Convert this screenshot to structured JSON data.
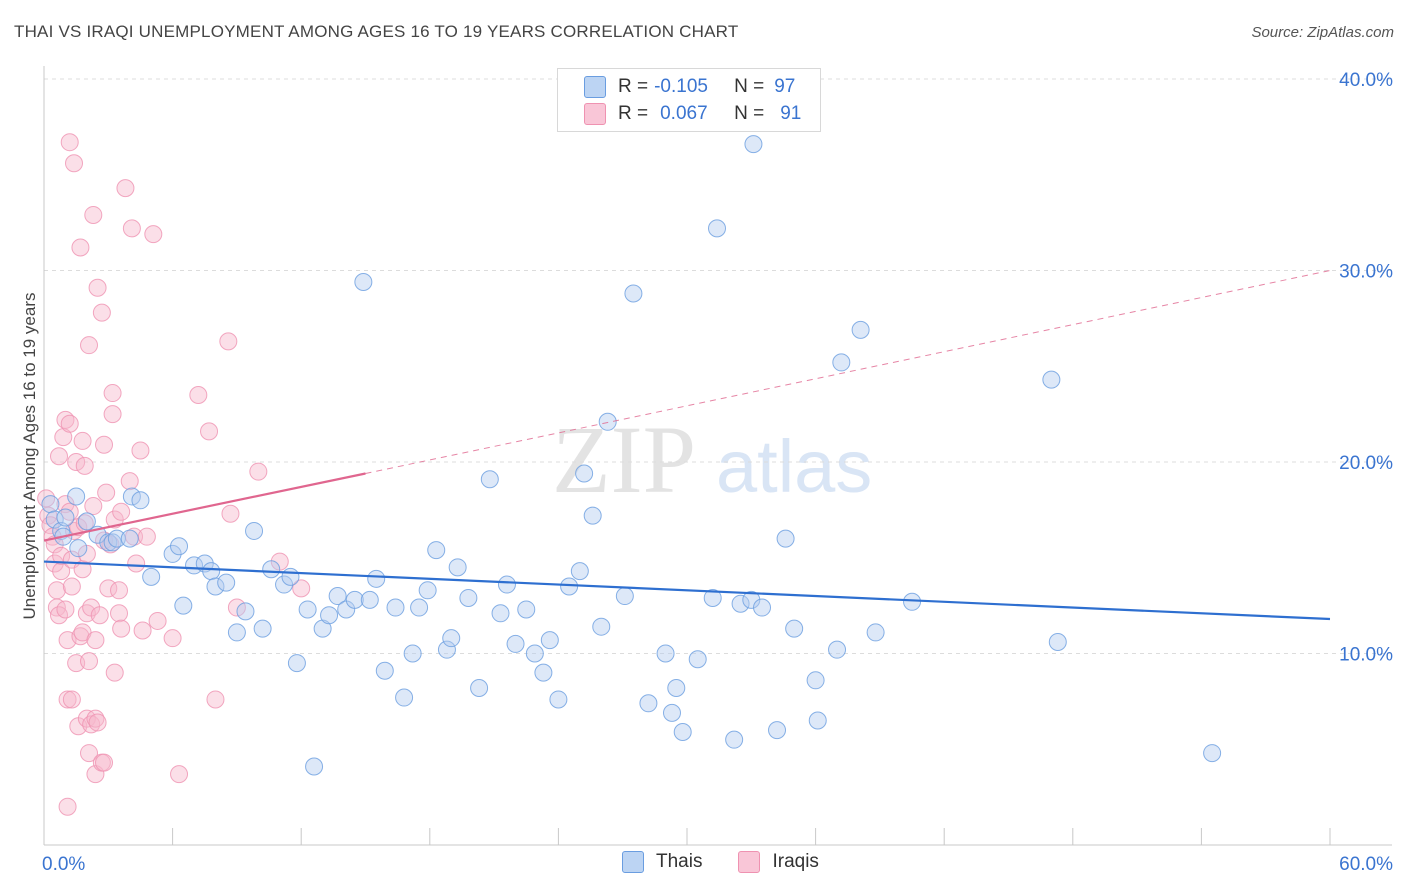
{
  "header": {
    "title": "THAI VS IRAQI UNEMPLOYMENT AMONG AGES 16 TO 19 YEARS CORRELATION CHART",
    "source": "Source: ZipAtlas.com"
  },
  "legend": {
    "r_label": "R =",
    "n_label": "N =",
    "thais": {
      "r": "-0.105",
      "n": "97"
    },
    "iraqis": {
      "r": "0.067",
      "n": "91"
    }
  },
  "watermark": {
    "zip": "ZIP",
    "atlas": "atlas"
  },
  "chart_data": {
    "type": "scatter",
    "title": "THAI VS IRAQI UNEMPLOYMENT AMONG AGES 16 TO 19 YEARS CORRELATION CHART",
    "xlabel": "",
    "ylabel": "Unemployment Among Ages 16 to 19 years",
    "xlim": [
      0,
      60
    ],
    "ylim": [
      0,
      40
    ],
    "x_tick_labels": [
      "0.0%",
      "60.0%"
    ],
    "y_tick_labels": [
      "10.0%",
      "20.0%",
      "30.0%",
      "40.0%"
    ],
    "y_ticks": [
      10,
      20,
      30,
      40
    ],
    "grid": "horizontal dashed",
    "legend_position": "top-center",
    "colors": {
      "thais": "#6a9de0",
      "iraqis": "#ef92b1",
      "thais_line": "#2e6fd0",
      "iraqis_line": "#e0668f",
      "tick_label": "#3a74d0"
    },
    "series": [
      {
        "name": "Thais",
        "trend": {
          "x": [
            0,
            60
          ],
          "y": [
            14.8,
            11.8
          ]
        },
        "points": [
          [
            0.3,
            17.8
          ],
          [
            0.5,
            17.0
          ],
          [
            0.8,
            16.4
          ],
          [
            0.9,
            16.1
          ],
          [
            1.0,
            17.1
          ],
          [
            1.5,
            18.2
          ],
          [
            1.6,
            15.5
          ],
          [
            2.0,
            16.9
          ],
          [
            2.5,
            16.2
          ],
          [
            3.0,
            15.8
          ],
          [
            3.2,
            15.8
          ],
          [
            3.4,
            16.0
          ],
          [
            4.0,
            16.0
          ],
          [
            4.1,
            18.2
          ],
          [
            4.5,
            18.0
          ],
          [
            5.0,
            14.0
          ],
          [
            6.0,
            15.2
          ],
          [
            6.3,
            15.6
          ],
          [
            6.5,
            12.5
          ],
          [
            7.0,
            14.6
          ],
          [
            7.5,
            14.7
          ],
          [
            7.8,
            14.3
          ],
          [
            8.0,
            13.5
          ],
          [
            8.5,
            13.7
          ],
          [
            9.0,
            11.1
          ],
          [
            9.4,
            12.2
          ],
          [
            9.8,
            16.4
          ],
          [
            10.2,
            11.3
          ],
          [
            10.6,
            14.4
          ],
          [
            11.2,
            13.6
          ],
          [
            11.5,
            14.0
          ],
          [
            11.8,
            9.5
          ],
          [
            12.3,
            12.3
          ],
          [
            12.6,
            4.1
          ],
          [
            13.0,
            11.3
          ],
          [
            13.3,
            12.0
          ],
          [
            13.7,
            13.0
          ],
          [
            14.1,
            12.3
          ],
          [
            14.5,
            12.8
          ],
          [
            14.9,
            29.4
          ],
          [
            15.2,
            12.8
          ],
          [
            15.5,
            13.9
          ],
          [
            15.9,
            9.1
          ],
          [
            16.4,
            12.4
          ],
          [
            16.8,
            7.7
          ],
          [
            17.2,
            10.0
          ],
          [
            17.5,
            12.4
          ],
          [
            17.9,
            13.3
          ],
          [
            18.3,
            15.4
          ],
          [
            18.8,
            10.2
          ],
          [
            19.0,
            10.8
          ],
          [
            19.3,
            14.5
          ],
          [
            19.8,
            12.9
          ],
          [
            20.3,
            8.2
          ],
          [
            20.8,
            19.1
          ],
          [
            21.3,
            12.1
          ],
          [
            21.6,
            13.6
          ],
          [
            22.0,
            10.5
          ],
          [
            22.5,
            12.3
          ],
          [
            22.9,
            10.0
          ],
          [
            23.3,
            9.0
          ],
          [
            23.6,
            10.7
          ],
          [
            24.0,
            7.6
          ],
          [
            24.5,
            13.5
          ],
          [
            25.0,
            14.3
          ],
          [
            25.2,
            19.4
          ],
          [
            25.6,
            17.2
          ],
          [
            26.0,
            11.4
          ],
          [
            26.3,
            22.1
          ],
          [
            27.1,
            13.0
          ],
          [
            27.5,
            28.8
          ],
          [
            28.2,
            7.4
          ],
          [
            29.0,
            10.0
          ],
          [
            29.3,
            6.9
          ],
          [
            29.5,
            8.2
          ],
          [
            29.8,
            5.9
          ],
          [
            30.5,
            9.7
          ],
          [
            31.2,
            12.9
          ],
          [
            31.4,
            32.2
          ],
          [
            32.2,
            5.5
          ],
          [
            32.5,
            12.6
          ],
          [
            33.0,
            12.8
          ],
          [
            33.1,
            36.6
          ],
          [
            33.5,
            12.4
          ],
          [
            34.2,
            6.0
          ],
          [
            34.6,
            16.0
          ],
          [
            35.0,
            11.3
          ],
          [
            36.0,
            8.6
          ],
          [
            36.1,
            6.5
          ],
          [
            37.0,
            10.2
          ],
          [
            37.2,
            25.2
          ],
          [
            38.1,
            26.9
          ],
          [
            38.8,
            11.1
          ],
          [
            40.5,
            12.7
          ],
          [
            47.0,
            24.3
          ],
          [
            47.3,
            10.6
          ],
          [
            54.5,
            4.8
          ]
        ]
      },
      {
        "name": "Iraqis",
        "trend": {
          "x": [
            0,
            15
          ],
          "y": [
            15.9,
            19.4
          ]
        },
        "trend_extended": {
          "x": [
            15,
            60
          ],
          "y": [
            19.4,
            30.0
          ]
        },
        "points": [
          [
            0.1,
            18.1
          ],
          [
            0.2,
            17.2
          ],
          [
            0.3,
            16.7
          ],
          [
            0.4,
            16.1
          ],
          [
            0.5,
            15.7
          ],
          [
            0.5,
            14.7
          ],
          [
            0.6,
            13.3
          ],
          [
            0.6,
            12.4
          ],
          [
            0.7,
            12.0
          ],
          [
            0.7,
            20.3
          ],
          [
            0.8,
            14.3
          ],
          [
            0.8,
            15.1
          ],
          [
            0.9,
            21.3
          ],
          [
            1.0,
            22.2
          ],
          [
            1.0,
            17.8
          ],
          [
            1.0,
            12.3
          ],
          [
            1.1,
            10.7
          ],
          [
            1.1,
            7.6
          ],
          [
            1.1,
            2.0
          ],
          [
            1.2,
            22.0
          ],
          [
            1.2,
            36.7
          ],
          [
            1.2,
            17.4
          ],
          [
            1.3,
            14.9
          ],
          [
            1.3,
            13.5
          ],
          [
            1.3,
            7.6
          ],
          [
            1.4,
            35.6
          ],
          [
            1.4,
            16.4
          ],
          [
            1.5,
            20.0
          ],
          [
            1.5,
            9.5
          ],
          [
            1.6,
            6.2
          ],
          [
            1.6,
            16.6
          ],
          [
            1.7,
            10.9
          ],
          [
            1.7,
            31.2
          ],
          [
            1.8,
            21.1
          ],
          [
            1.8,
            14.4
          ],
          [
            1.8,
            11.1
          ],
          [
            1.9,
            19.8
          ],
          [
            1.9,
            16.8
          ],
          [
            2.0,
            15.2
          ],
          [
            2.0,
            12.1
          ],
          [
            2.0,
            6.6
          ],
          [
            2.1,
            26.1
          ],
          [
            2.1,
            9.6
          ],
          [
            2.1,
            4.8
          ],
          [
            2.2,
            12.4
          ],
          [
            2.2,
            6.3
          ],
          [
            2.3,
            32.9
          ],
          [
            2.3,
            17.7
          ],
          [
            2.4,
            10.7
          ],
          [
            2.4,
            6.6
          ],
          [
            2.4,
            3.7
          ],
          [
            2.5,
            29.1
          ],
          [
            2.5,
            6.4
          ],
          [
            2.6,
            12.0
          ],
          [
            2.7,
            27.8
          ],
          [
            2.7,
            4.3
          ],
          [
            2.8,
            20.9
          ],
          [
            2.8,
            15.9
          ],
          [
            2.8,
            4.3
          ],
          [
            2.9,
            18.4
          ],
          [
            3.0,
            13.4
          ],
          [
            3.1,
            15.7
          ],
          [
            3.2,
            23.6
          ],
          [
            3.2,
            22.5
          ],
          [
            3.3,
            9.0
          ],
          [
            3.3,
            17.0
          ],
          [
            3.5,
            12.1
          ],
          [
            3.5,
            13.3
          ],
          [
            3.6,
            11.3
          ],
          [
            3.6,
            17.4
          ],
          [
            3.8,
            34.3
          ],
          [
            4.0,
            19.0
          ],
          [
            4.1,
            32.2
          ],
          [
            4.2,
            16.1
          ],
          [
            4.3,
            14.7
          ],
          [
            4.5,
            20.6
          ],
          [
            4.6,
            11.2
          ],
          [
            4.8,
            16.1
          ],
          [
            5.1,
            31.9
          ],
          [
            5.3,
            11.7
          ],
          [
            6.0,
            10.8
          ],
          [
            6.3,
            3.7
          ],
          [
            7.2,
            23.5
          ],
          [
            7.7,
            21.6
          ],
          [
            8.0,
            7.6
          ],
          [
            8.6,
            26.3
          ],
          [
            8.7,
            17.3
          ],
          [
            9.0,
            12.4
          ],
          [
            10.0,
            19.5
          ],
          [
            11.0,
            14.8
          ],
          [
            12.0,
            13.4
          ]
        ]
      }
    ]
  }
}
